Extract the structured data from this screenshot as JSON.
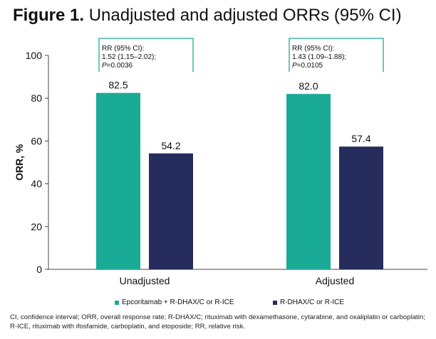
{
  "figure": {
    "title_bold": "Figure 1.",
    "title_rest": " Unadjusted and adjusted ORRs (95% CI)",
    "footnote": "CI, confidence interval; ORR, overall response rate; R-DHAX/C; rituximab with dexamethasone, cytarabine, and oxaliplatin or carboplatin; R-ICE, rituximab with ifosfamide, carboplatin, and etoposide; RR, relative risk."
  },
  "chart_data": {
    "type": "bar",
    "categories": [
      "Unadjusted",
      "Adjusted"
    ],
    "series": [
      {
        "name": "Epcoritamab + R-DHAX/C or R-ICE",
        "color": "#1aab96",
        "values": [
          82.5,
          82.0
        ]
      },
      {
        "name": "R-DHAX/C or R-ICE",
        "color": "#262c5c",
        "values": [
          54.2,
          57.4
        ]
      }
    ],
    "data_labels": [
      [
        "82.5",
        "82.0"
      ],
      [
        "54.2",
        "57.4"
      ]
    ],
    "ylabel": "ORR, %",
    "xlabel": "",
    "ylim": [
      0,
      100
    ],
    "yticks": [
      0,
      20,
      40,
      60,
      80,
      100
    ],
    "grid": false,
    "legend_position": "bottom",
    "annotations": [
      {
        "category": "Unadjusted",
        "lines": [
          "RR (95% CI):",
          "1.52 (1.15–2.02);"
        ],
        "p_label": "P",
        "p_value": "=0.0036"
      },
      {
        "category": "Adjusted",
        "lines": [
          "RR (95% CI):",
          "1.43 (1.09–1.88);"
        ],
        "p_label": "P",
        "p_value": "=0.0105"
      }
    ],
    "bracket_color": "#1aab96"
  }
}
